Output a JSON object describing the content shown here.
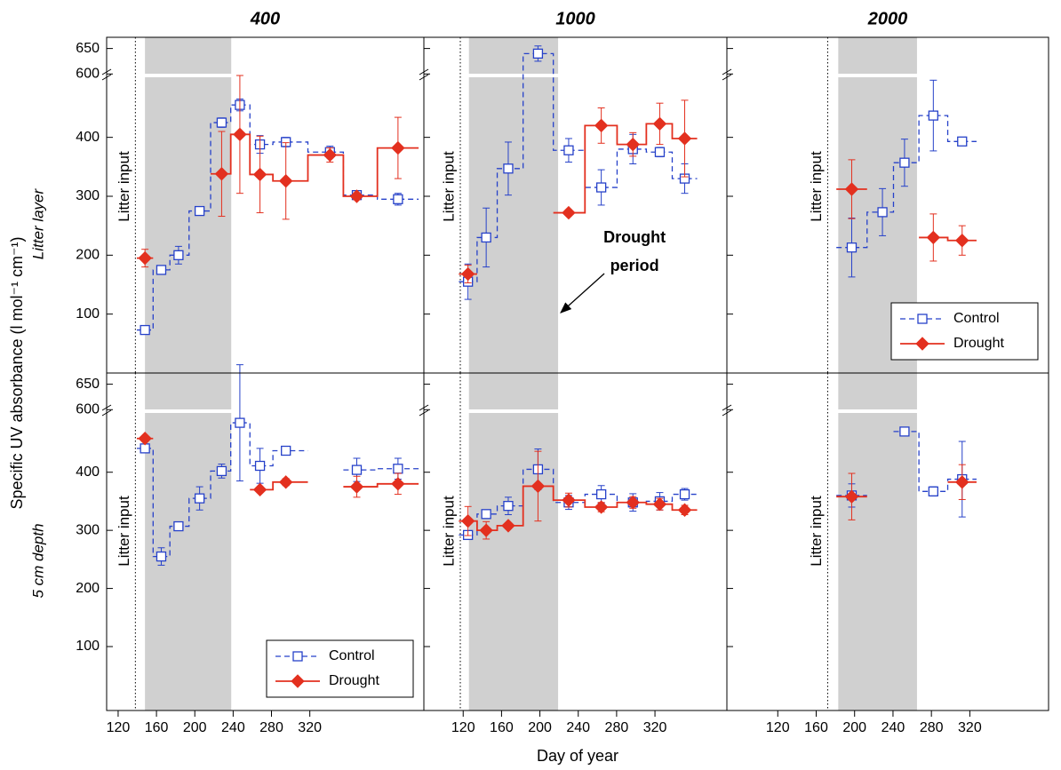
{
  "figure": {
    "column_titles": [
      "400",
      "1000",
      "2000"
    ],
    "row_labels": [
      "Litter layer",
      "5 cm depth"
    ],
    "xlabel": "Day of year",
    "ylabel": "Specific UV absorbance (l mol⁻¹ cm⁻¹)"
  },
  "chart_data": [
    {
      "type": "step",
      "x": [
        148,
        165,
        183,
        205,
        228,
        247,
        268,
        295,
        341,
        369,
        412
      ],
      "xlim": [
        108,
        439
      ],
      "ylim": [
        0,
        672
      ],
      "y_break": [
        505,
        597
      ],
      "yticks": [
        100,
        200,
        300,
        400,
        600,
        650
      ],
      "litter_input": 138,
      "litter_label": "Litter input",
      "drought_period": [
        148,
        238
      ],
      "series": [
        {
          "color": "#2641c9",
          "marker": "square",
          "line_style": "dashed",
          "values": [
            73,
            175,
            200,
            275,
            425,
            455,
            388,
            392,
            375,
            302,
            295
          ],
          "errors": [
            4,
            6,
            15,
            6,
            8,
            10,
            15,
            8,
            10,
            7,
            10
          ]
        },
        {
          "color": "#e3301f",
          "marker": "diamond",
          "line_style": "solid",
          "values": [
            195,
            null,
            null,
            null,
            338,
            405,
            337,
            326,
            370,
            300,
            382
          ],
          "errors": [
            15,
            null,
            null,
            null,
            72,
            100,
            65,
            65,
            12,
            6,
            52
          ]
        }
      ]
    },
    {
      "type": "step",
      "x": [
        125,
        144,
        167,
        198,
        230,
        264,
        297,
        325,
        351
      ],
      "xlim": [
        79,
        395
      ],
      "ylim": [
        0,
        672
      ],
      "y_break": [
        505,
        597
      ],
      "yticks": [
        100,
        200,
        300,
        400,
        600,
        650
      ],
      "litter_input": 117,
      "litter_label": "Litter input",
      "drought_period": [
        126,
        219
      ],
      "drought_label": [
        "Drought",
        "period"
      ],
      "series": [
        {
          "color": "#2641c9",
          "marker": "square",
          "line_style": "dashed",
          "values": [
            155,
            230,
            347,
            640,
            378,
            315,
            380,
            375,
            330
          ],
          "errors": [
            30,
            50,
            45,
            15,
            20,
            30,
            25,
            8,
            25
          ]
        },
        {
          "color": "#e3301f",
          "marker": "diamond",
          "line_style": "solid",
          "values": [
            168,
            null,
            null,
            null,
            272,
            420,
            388,
            423,
            398
          ],
          "errors": [
            15,
            null,
            null,
            null,
            5,
            30,
            20,
            35,
            65
          ]
        }
      ]
    },
    {
      "type": "step",
      "x": [
        197,
        229,
        252,
        282,
        312
      ],
      "xlim": [
        67,
        402
      ],
      "ylim": [
        0,
        672
      ],
      "y_break": [
        505,
        597
      ],
      "yticks": [
        100,
        200,
        300,
        400,
        600,
        650
      ],
      "litter_input": 172,
      "litter_label": "Litter input",
      "drought_period": [
        183,
        265
      ],
      "legend": "lower right",
      "series": [
        {
          "name": "Control",
          "color": "#2641c9",
          "marker": "square",
          "line_style": "dashed",
          "values": [
            213,
            273,
            357,
            437,
            393
          ],
          "errors": [
            50,
            40,
            40,
            60,
            5
          ]
        },
        {
          "name": "Drought",
          "color": "#e3301f",
          "marker": "diamond",
          "line_style": "solid",
          "values": [
            312,
            null,
            null,
            230,
            225
          ],
          "errors": [
            50,
            null,
            null,
            40,
            25
          ]
        }
      ]
    },
    {
      "type": "step",
      "x": [
        148,
        165,
        183,
        205,
        228,
        247,
        268,
        295,
        341,
        369,
        412
      ],
      "xlim": [
        108,
        439
      ],
      "xticks": [
        120,
        160,
        200,
        240,
        280,
        320
      ],
      "ylim": [
        -10,
        672
      ],
      "y_break": [
        505,
        597
      ],
      "yticks": [
        100,
        200,
        300,
        400,
        600,
        650
      ],
      "litter_input": 138,
      "litter_label": "Litter input",
      "drought_period": [
        148,
        238
      ],
      "legend": "lower right",
      "series": [
        {
          "name": "Control",
          "color": "#2641c9",
          "marker": "square",
          "line_style": "dashed",
          "values": [
            441,
            255,
            307,
            355,
            402,
            485,
            411,
            437,
            null,
            404,
            406
          ],
          "errors": [
            5,
            15,
            6,
            20,
            12,
            100,
            30,
            5,
            null,
            20,
            18
          ]
        },
        {
          "name": "Drought",
          "color": "#e3301f",
          "marker": "diamond",
          "line_style": "solid",
          "values": [
            458,
            null,
            null,
            null,
            null,
            null,
            370,
            383,
            null,
            375,
            380
          ],
          "errors": [
            3,
            null,
            null,
            null,
            null,
            null,
            5,
            6,
            null,
            18,
            18
          ]
        }
      ]
    },
    {
      "type": "step",
      "x": [
        125,
        144,
        167,
        198,
        230,
        264,
        297,
        325,
        351
      ],
      "xlim": [
        79,
        395
      ],
      "xticks": [
        120,
        160,
        200,
        240,
        280,
        320
      ],
      "ylim": [
        -10,
        672
      ],
      "y_break": [
        505,
        597
      ],
      "yticks": [
        100,
        200,
        300,
        400,
        600,
        650
      ],
      "litter_input": 117,
      "litter_label": "Litter input",
      "drought_period": [
        126,
        219
      ],
      "series": [
        {
          "color": "#2641c9",
          "marker": "square",
          "line_style": "dashed",
          "values": [
            292,
            328,
            342,
            405,
            348,
            362,
            348,
            350,
            362
          ],
          "errors": [
            5,
            5,
            15,
            35,
            12,
            15,
            15,
            15,
            10
          ]
        },
        {
          "color": "#e3301f",
          "marker": "diamond",
          "line_style": "solid",
          "values": [
            316,
            300,
            308,
            376,
            352,
            340,
            348,
            345,
            335
          ],
          "errors": [
            25,
            15,
            5,
            60,
            12,
            8,
            10,
            10,
            8
          ]
        }
      ]
    },
    {
      "type": "step",
      "x": [
        197,
        229,
        252,
        282,
        312
      ],
      "xlim": [
        67,
        402
      ],
      "xticks": [
        120,
        160,
        200,
        240,
        280,
        320
      ],
      "ylim": [
        -10,
        672
      ],
      "y_break": [
        505,
        597
      ],
      "yticks": [
        100,
        200,
        300,
        400,
        600,
        650
      ],
      "litter_input": 172,
      "litter_label": "Litter input",
      "drought_period": [
        183,
        265
      ],
      "series": [
        {
          "color": "#2641c9",
          "marker": "square",
          "line_style": "dashed",
          "values": [
            360,
            null,
            470,
            367,
            388
          ],
          "errors": [
            20,
            null,
            3,
            8,
            65
          ]
        },
        {
          "color": "#e3301f",
          "marker": "diamond",
          "line_style": "solid",
          "values": [
            358,
            null,
            null,
            null,
            383
          ],
          "errors": [
            40,
            null,
            null,
            null,
            30
          ]
        }
      ]
    }
  ]
}
